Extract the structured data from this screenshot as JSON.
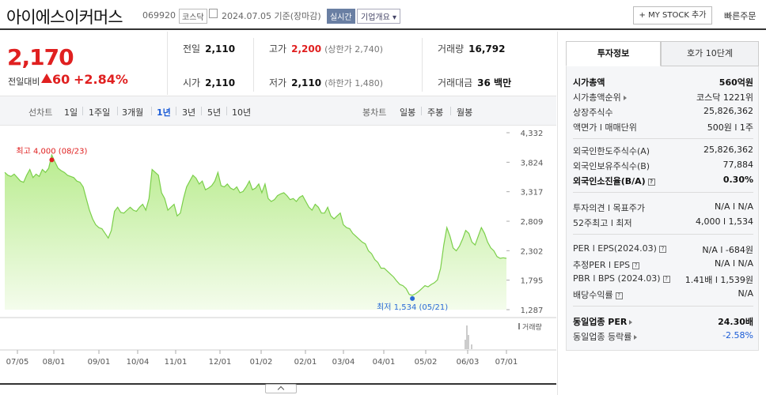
{
  "header": {
    "name": "아이에스이커머스",
    "code": "069920",
    "market": "코스닥",
    "date": "2024.07.05",
    "basis": "기준(장마감)",
    "realtime": "실시간",
    "overview": "기업개요",
    "mystock": "+ MY STOCK 추가",
    "quick": "빠른주문"
  },
  "price": {
    "current": "2,170",
    "prev_label": "전일대비",
    "change": "60",
    "change_pct": "+2.84%",
    "up_color": "#e02020"
  },
  "stats": {
    "prev_label": "전일",
    "prev": "2,110",
    "open_label": "시가",
    "open": "2,110",
    "high_label": "고가",
    "high": "2,200",
    "upper_limit": "(상한가 2,740)",
    "low_label": "저가",
    "low": "2,110",
    "lower_limit": "(하한가 1,480)",
    "volume_label": "거래량",
    "volume": "16,792",
    "amount_label": "거래대금",
    "amount": "36 백만"
  },
  "ranges": {
    "line_title": "선차트",
    "line": [
      "1일",
      "1주일",
      "3개월",
      "1년",
      "3년",
      "5년",
      "10년"
    ],
    "selected": "1년",
    "candle_title": "봉차트",
    "candle": [
      "일봉",
      "주봉",
      "월봉"
    ]
  },
  "chart_data": {
    "type": "area",
    "x_ticks": [
      "07/05",
      "08/01",
      "09/01",
      "10/04",
      "11/01",
      "12/01",
      "01/02",
      "02/01",
      "03/04",
      "04/01",
      "05/02",
      "06/03",
      "07/01"
    ],
    "y_ticks": [
      4332,
      3824,
      3317,
      2809,
      2302,
      1795,
      1287
    ],
    "ylim": [
      1287,
      4332
    ],
    "high_label": "최고 4,000 (08/23)",
    "low_label": "최저 1,534 (05/21)",
    "high_value": 4000,
    "low_value": 1534,
    "volume_label": "거래량",
    "fill_color": "#b9ec8f",
    "line_color": "#7bcf4a",
    "series": [
      {
        "values": [
          3650,
          3600,
          3580,
          3620,
          3560,
          3500,
          3480,
          3600,
          3700,
          3560,
          3620,
          3580,
          3700,
          3650,
          3720,
          3950,
          3830,
          3720,
          3680,
          3650,
          3600,
          3580,
          3560,
          3500,
          3480,
          3400,
          3200,
          3000,
          2850,
          2750,
          2700,
          2680,
          2600,
          2520,
          2650,
          2980,
          3050,
          2960,
          2950,
          3000,
          3050,
          3000,
          2980,
          3050,
          3100,
          3000,
          3200,
          3700,
          3650,
          3600,
          3300,
          3200,
          3000,
          3050,
          3100,
          2900,
          2950,
          3200,
          3400,
          3500,
          3600,
          3550,
          3450,
          3500,
          3350,
          3380,
          3420,
          3500,
          3650,
          3420,
          3400,
          3450,
          3380,
          3350,
          3400,
          3300,
          3320,
          3400,
          3500,
          3350,
          3380,
          3450,
          3300,
          3450,
          3200,
          3150,
          3180,
          3250,
          3280,
          3300,
          3250,
          3180,
          3200,
          3150,
          3220,
          3250,
          3150,
          3050,
          3000,
          3100,
          3050,
          2950,
          2950,
          3050,
          2900,
          2850,
          2900,
          2950,
          2750,
          2700,
          2680,
          2600,
          2550,
          2500,
          2450,
          2420,
          2300,
          2250,
          2150,
          2100,
          2000,
          2000,
          1950,
          1900,
          1850,
          1780,
          1720,
          1700,
          1650,
          1550,
          1534,
          1560,
          1600,
          1650,
          1700,
          1680,
          1720,
          1750,
          1800,
          2000,
          2400,
          2700,
          2550,
          2350,
          2300,
          2380,
          2500,
          2650,
          2600,
          2450,
          2400,
          2550,
          2700,
          2600,
          2450,
          2350,
          2300,
          2200,
          2170,
          2180,
          2170
        ]
      }
    ]
  },
  "info": {
    "tab_active": "투자정보",
    "tab_other": "호가 10단계",
    "mktcap_label": "시가총액",
    "mktcap": "560억원",
    "rank_label": "시가총액순위",
    "rank": "코스닥 1221위",
    "shares_label": "상장주식수",
    "shares": "25,826,362",
    "par_label": "액면가 l 매매단위",
    "par": "500원 l 1주",
    "fshares_label": "외국인한도주식수(A)",
    "fshares": "25,826,362",
    "fhold_label": "외국인보유주식수(B)",
    "fhold": "77,884",
    "fratio_label": "외국인소진율(B/A)",
    "fratio": "0.30%",
    "opinion_label": "투자의견 l 목표주가",
    "opinion": "N/A l N/A",
    "w52_label": "52주최고 l 최저",
    "w52": "4,000 l 1,534",
    "per_label": "PER l EPS(2024.03)",
    "per": "N/A l -684원",
    "eper_label": "추정PER l EPS",
    "eper": "N/A l N/A",
    "pbr_label": "PBR l BPS (2024.03)",
    "pbr": "1.41배 l 1,539원",
    "div_label": "배당수익률",
    "div": "N/A",
    "sector_per_label": "동일업종 PER",
    "sector_per": "24.30배",
    "sector_chg_label": "동일업종 등락률",
    "sector_chg": "-2.58%"
  }
}
